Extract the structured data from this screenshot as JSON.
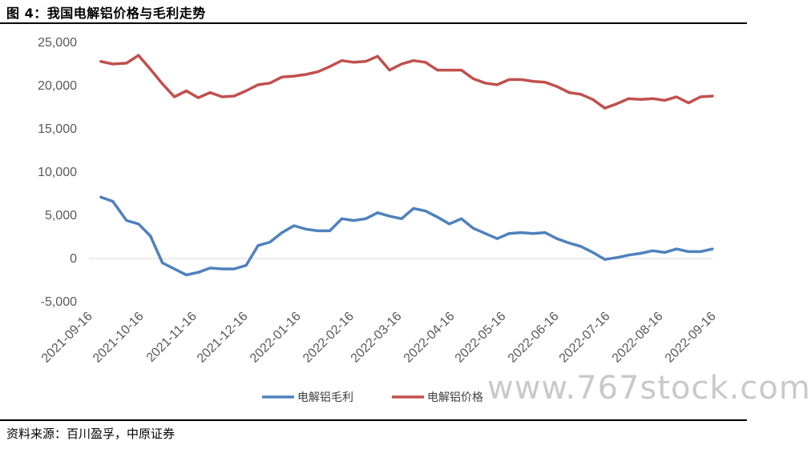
{
  "figure": {
    "title": "图 4：我国电解铝价格与毛利走势",
    "source": "资料来源：百川盈孚，中原证券",
    "watermark": "www.767stock.com"
  },
  "chart_data": {
    "type": "line",
    "title": "",
    "xlabel": "",
    "ylabel": "",
    "ylim": [
      -5000,
      25000
    ],
    "yticks": [
      -5000,
      0,
      5000,
      10000,
      15000,
      20000,
      25000
    ],
    "ytick_labels": [
      "-5,000",
      "0",
      "5,000",
      "10,000",
      "15,000",
      "20,000",
      "25,000"
    ],
    "xticks": [
      "2021-09-16",
      "2021-10-16",
      "2021-11-16",
      "2021-12-16",
      "2022-01-16",
      "2022-02-16",
      "2022-03-16",
      "2022-04-16",
      "2022-05-16",
      "2022-06-16",
      "2022-07-16",
      "2022-08-16",
      "2022-09-16"
    ],
    "grid": false,
    "legend": "bottom",
    "series": [
      {
        "name": "电解铝毛利",
        "color": "#4f81bd",
        "x": [
          "2021-09-23",
          "2021-09-30",
          "2021-10-08",
          "2021-10-15",
          "2021-10-22",
          "2021-10-29",
          "2021-11-05",
          "2021-11-12",
          "2021-11-19",
          "2021-11-26",
          "2021-12-03",
          "2021-12-10",
          "2021-12-17",
          "2021-12-24",
          "2021-12-31",
          "2022-01-07",
          "2022-01-14",
          "2022-01-21",
          "2022-01-28",
          "2022-02-04",
          "2022-02-11",
          "2022-02-18",
          "2022-02-25",
          "2022-03-04",
          "2022-03-11",
          "2022-03-18",
          "2022-03-25",
          "2022-04-01",
          "2022-04-08",
          "2022-04-15",
          "2022-04-22",
          "2022-04-29",
          "2022-05-06",
          "2022-05-13",
          "2022-05-20",
          "2022-05-27",
          "2022-06-03",
          "2022-06-10",
          "2022-06-17",
          "2022-06-24",
          "2022-07-01",
          "2022-07-08",
          "2022-07-15",
          "2022-07-22",
          "2022-07-29",
          "2022-08-05",
          "2022-08-12",
          "2022-08-19",
          "2022-08-26",
          "2022-09-02",
          "2022-09-09",
          "2022-09-16"
        ],
        "values": [
          7100,
          6600,
          4400,
          4000,
          2600,
          -500,
          -1200,
          -1900,
          -1600,
          -1100,
          -1200,
          -1200,
          -800,
          1500,
          1900,
          3000,
          3800,
          3400,
          3200,
          3200,
          4600,
          4400,
          4600,
          5300,
          4900,
          4600,
          5800,
          5500,
          4800,
          4000,
          4600,
          3500,
          2900,
          2300,
          2900,
          3000,
          2900,
          3000,
          2300,
          1800,
          1400,
          700,
          -100,
          100,
          400,
          600,
          900,
          700,
          1100,
          800,
          800,
          1100
        ]
      },
      {
        "name": "电解铝价格",
        "color": "#c0504d",
        "x": [
          "2021-09-23",
          "2021-09-30",
          "2021-10-08",
          "2021-10-15",
          "2021-10-22",
          "2021-10-29",
          "2021-11-05",
          "2021-11-12",
          "2021-11-19",
          "2021-11-26",
          "2021-12-03",
          "2021-12-10",
          "2021-12-17",
          "2021-12-24",
          "2021-12-31",
          "2022-01-07",
          "2022-01-14",
          "2022-01-21",
          "2022-01-28",
          "2022-02-04",
          "2022-02-11",
          "2022-02-18",
          "2022-02-25",
          "2022-03-04",
          "2022-03-11",
          "2022-03-18",
          "2022-03-25",
          "2022-04-01",
          "2022-04-08",
          "2022-04-15",
          "2022-04-22",
          "2022-04-29",
          "2022-05-06",
          "2022-05-13",
          "2022-05-20",
          "2022-05-27",
          "2022-06-03",
          "2022-06-10",
          "2022-06-17",
          "2022-06-24",
          "2022-07-01",
          "2022-07-08",
          "2022-07-15",
          "2022-07-22",
          "2022-07-29",
          "2022-08-05",
          "2022-08-12",
          "2022-08-19",
          "2022-08-26",
          "2022-09-02",
          "2022-09-09",
          "2022-09-16"
        ],
        "values": [
          22800,
          22500,
          22600,
          23500,
          21900,
          20200,
          18700,
          19400,
          18600,
          19200,
          18700,
          18800,
          19400,
          20100,
          20300,
          21000,
          21100,
          21300,
          21600,
          22200,
          22900,
          22700,
          22800,
          23400,
          21800,
          22500,
          22900,
          22700,
          21800,
          21800,
          21800,
          20800,
          20300,
          20100,
          20700,
          20700,
          20500,
          20400,
          19900,
          19200,
          19000,
          18400,
          17400,
          17900,
          18500,
          18400,
          18500,
          18300,
          18700,
          18000,
          18700,
          18800
        ]
      }
    ]
  }
}
